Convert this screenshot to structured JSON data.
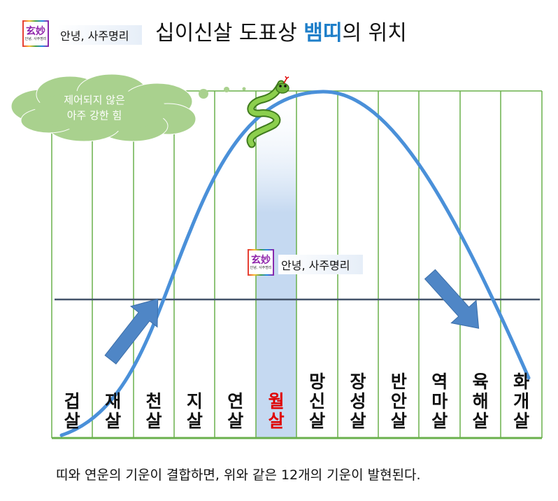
{
  "header": {
    "brand_logo_text": "玄妙",
    "brand_logo_sub": "안녕, 사주명리",
    "brand_label": "안녕, 사주명리",
    "title_prefix": "십이신살 도표상 ",
    "title_highlight": "뱀띠",
    "title_suffix": "의 위치"
  },
  "cloud": {
    "text": "제어되지 않은\n아주 강한 힘"
  },
  "watermark": {
    "label": "안녕, 사주명리"
  },
  "columns": [
    {
      "label": "겁\n살",
      "color": "#111111"
    },
    {
      "label": "재\n살",
      "color": "#111111"
    },
    {
      "label": "천\n살",
      "color": "#111111"
    },
    {
      "label": "지\n살",
      "color": "#111111"
    },
    {
      "label": "연\n살",
      "color": "#111111"
    },
    {
      "label": "월\n살",
      "color": "#e00000"
    },
    {
      "label": "망\n신\n살",
      "color": "#111111"
    },
    {
      "label": "장\n성\n살",
      "color": "#111111"
    },
    {
      "label": "반\n안\n살",
      "color": "#111111"
    },
    {
      "label": "역\n마\n살",
      "color": "#111111"
    },
    {
      "label": "육\n해\n살",
      "color": "#111111"
    },
    {
      "label": "화\n개\n살",
      "color": "#111111"
    }
  ],
  "highlighted_column": 5,
  "colors": {
    "grid": "#6ab04c",
    "curve": "#4a90d9",
    "arrow": "#4f86c6",
    "cloud": "#a9d18e",
    "highlight": "#c5d9f1",
    "title_highlight": "#1f7fc9",
    "snake": "#5aa02c"
  },
  "caption": "띠와 연운의 기운이 결합하면, 위와 같은 12개의 기운이 발현된다."
}
